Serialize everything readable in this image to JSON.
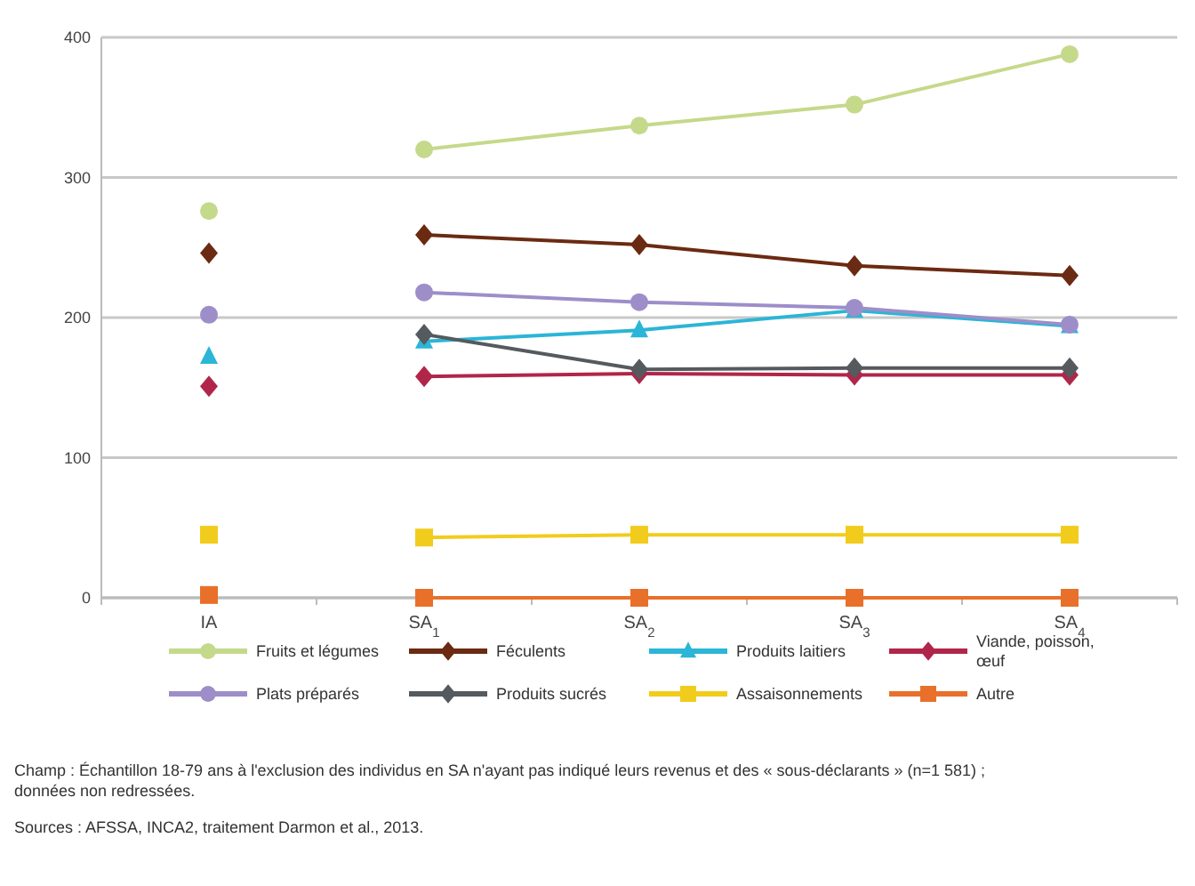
{
  "chart_data": {
    "type": "line",
    "categories": [
      "IA",
      "SA$_{1}$",
      "SA$_{2}$",
      "SA$_{3}$",
      "SA$_{4}$"
    ],
    "ylim": [
      0,
      400
    ],
    "yticks": [
      0,
      100,
      200,
      300,
      400
    ],
    "grid": "y",
    "legend": "bottom",
    "series": [
      {
        "name": "Fruits et légumes",
        "color": "#c5d98a",
        "marker": "circle",
        "values": [
          null,
          320,
          337,
          352,
          388
        ]
      },
      {
        "name": "Féculents",
        "color": "#6b2a12",
        "marker": "diamond",
        "values": [
          null,
          259,
          252,
          237,
          230
        ]
      },
      {
        "name": "Produits laitiers",
        "color": "#2bb5d6",
        "marker": "triangle",
        "values": [
          null,
          183,
          191,
          205,
          194
        ]
      },
      {
        "name": "Viande, poisson, œuf",
        "color": "#b0264a",
        "marker": "diamond",
        "values": [
          null,
          158,
          160,
          159,
          159
        ]
      },
      {
        "name": "Plats préparés",
        "color": "#9d8ec9",
        "marker": "circle",
        "values": [
          null,
          218,
          211,
          207,
          195
        ]
      },
      {
        "name": "Produits sucrés",
        "color": "#555a5e",
        "marker": "diamond",
        "values": [
          null,
          188,
          163,
          164,
          164
        ]
      },
      {
        "name": "Assaisonnements",
        "color": "#f2cc1c",
        "marker": "square",
        "values": [
          null,
          43,
          45,
          45,
          45
        ]
      },
      {
        "name": "Autre",
        "color": "#e8702a",
        "marker": "square",
        "values": [
          null,
          0,
          0,
          0,
          0
        ]
      },
      {
        "type": "scatter",
        "color": "#c5d98a",
        "marker": "circle",
        "values": [
          276,
          null,
          null,
          null,
          null
        ]
      },
      {
        "type": "scatter",
        "color": "#6b2a12",
        "marker": "diamond",
        "values": [
          246,
          null,
          null,
          null,
          null
        ]
      },
      {
        "type": "scatter",
        "color": "#2bb5d6",
        "marker": "triangle",
        "values": [
          172,
          null,
          null,
          null,
          null
        ]
      },
      {
        "type": "scatter",
        "color": "#b0264a",
        "marker": "diamond",
        "values": [
          151,
          null,
          null,
          null,
          null
        ]
      },
      {
        "type": "scatter",
        "color": "#9d8ec9",
        "marker": "circle",
        "values": [
          202,
          null,
          null,
          null,
          null
        ]
      },
      {
        "type": "scatter",
        "color": "#f2cc1c",
        "marker": "square",
        "values": [
          45,
          null,
          null,
          null,
          null
        ]
      },
      {
        "type": "scatter",
        "color": "#e8702a",
        "marker": "square",
        "values": [
          2,
          null,
          null,
          null,
          null
        ]
      }
    ],
    "annotations": [
      "Champ : Échantillon 18-79 ans à l'exclusion des individus en SA n'ayant pas indiqué leurs revenus et des « sous-déclarants » (n=1 581) ; données non redressées.",
      "Sources : AFSSA, INCA2, traitement Darmon et al., 2013."
    ]
  }
}
